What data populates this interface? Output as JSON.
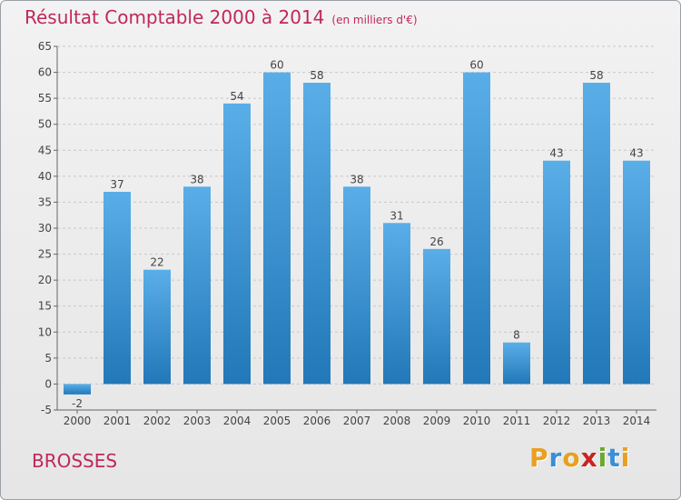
{
  "header": {
    "title": "Résultat Comptable 2000 à 2014",
    "unit": "(en milliers d'€)"
  },
  "footer": {
    "commune": "BROSSES",
    "logo_text": "Proxiti",
    "logo_colors": [
      "#e8a021",
      "#3a8fd6",
      "#e8a021",
      "#cc2222",
      "#6aa82e",
      "#3a8fd6",
      "#e8a021"
    ]
  },
  "colors": {
    "title": "#c0285a",
    "bar_light": "#5aaee8",
    "bar_dark": "#2278b8"
  },
  "chart_data": {
    "type": "bar",
    "title": "Résultat Comptable 2000 à 2014",
    "subtitle": "(en milliers d'€)",
    "categories": [
      "2000",
      "2001",
      "2002",
      "2003",
      "2004",
      "2005",
      "2006",
      "2007",
      "2008",
      "2009",
      "2010",
      "2011",
      "2012",
      "2013",
      "2014"
    ],
    "values": [
      -2,
      37,
      22,
      38,
      54,
      60,
      58,
      38,
      31,
      26,
      60,
      8,
      43,
      58,
      43
    ],
    "ylim": [
      -5,
      65
    ],
    "yticks": [
      -5,
      0,
      5,
      10,
      15,
      20,
      25,
      30,
      35,
      40,
      45,
      50,
      55,
      60,
      65
    ],
    "grid": "horizontal-dashed",
    "data_labels": true
  }
}
